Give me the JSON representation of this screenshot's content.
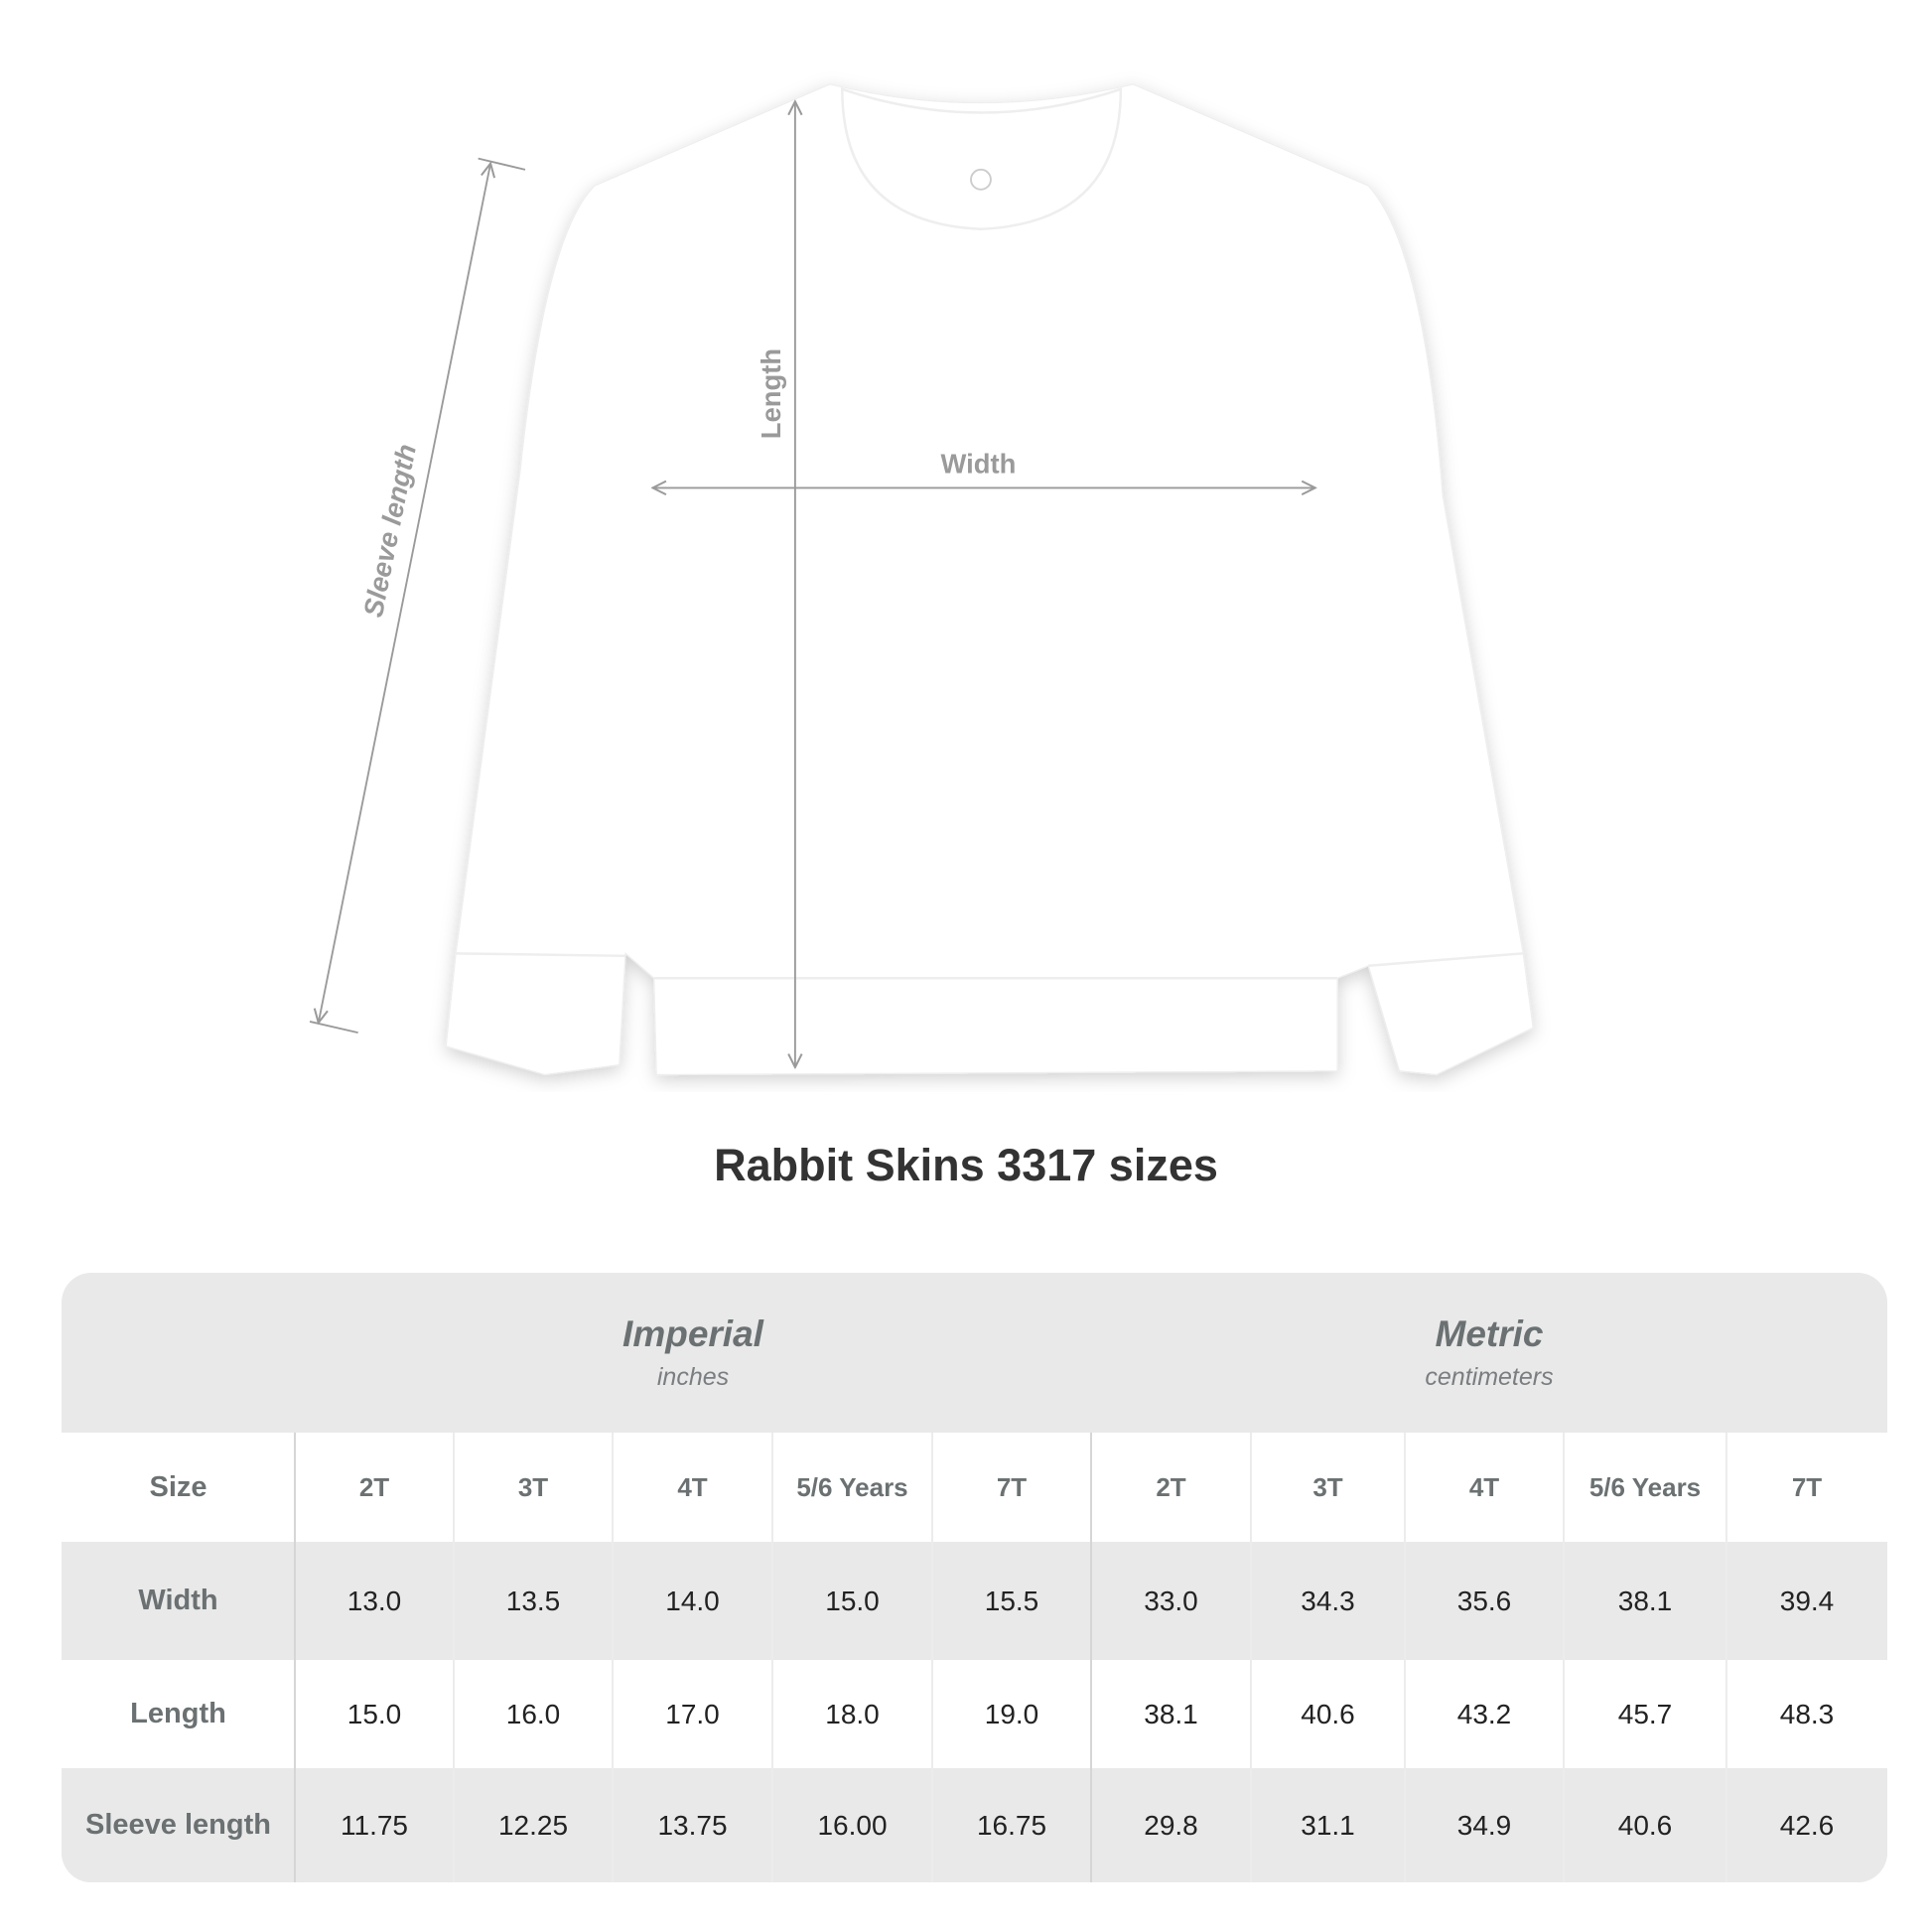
{
  "diagram": {
    "labels": {
      "length": "Length",
      "width": "Width",
      "sleeve": "Sleeve length"
    },
    "garment_color": "#ffffff",
    "line_color": "#9a9a9a"
  },
  "title": "Rabbit Skins 3317 sizes",
  "table": {
    "groups": [
      {
        "name": "Imperial",
        "unit": "inches"
      },
      {
        "name": "Metric",
        "unit": "centimeters"
      }
    ],
    "header_label": "Size",
    "sizes": [
      "2T",
      "3T",
      "4T",
      "5/6 Years",
      "7T",
      "2T",
      "3T",
      "4T",
      "5/6 Years",
      "7T"
    ],
    "rows": [
      {
        "label": "Width",
        "values": [
          "13.0",
          "13.5",
          "14.0",
          "15.0",
          "15.5",
          "33.0",
          "34.3",
          "35.6",
          "38.1",
          "39.4"
        ]
      },
      {
        "label": "Length",
        "values": [
          "15.0",
          "16.0",
          "17.0",
          "18.0",
          "19.0",
          "38.1",
          "40.6",
          "43.2",
          "45.7",
          "48.3"
        ]
      },
      {
        "label": "Sleeve length",
        "values": [
          "11.75",
          "12.25",
          "13.75",
          "16.00",
          "16.75",
          "29.8",
          "31.1",
          "34.9",
          "40.6",
          "42.6"
        ]
      }
    ],
    "header_bg": "#e9e9e9",
    "stripe_bg": "#e9e9e9"
  }
}
